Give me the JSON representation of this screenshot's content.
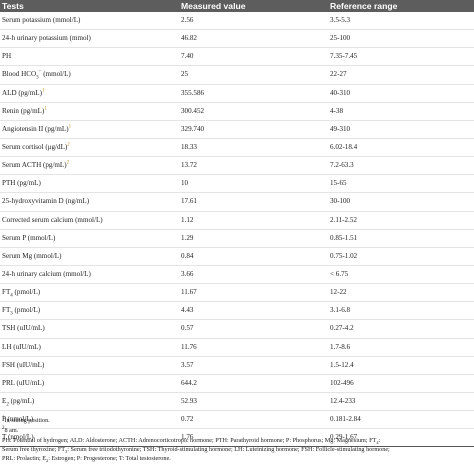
{
  "table": {
    "headers": [
      "Tests",
      "Measured value",
      "Reference range"
    ],
    "rows": [
      {
        "name": "Serum potassium (mmol/L)",
        "value": "2.56",
        "range": "3.5-5.3"
      },
      {
        "name": "24-h urinary potassium (mmol)",
        "value": "46.82",
        "range": "25-100"
      },
      {
        "name": "PH",
        "value": "7.40",
        "range": "7.35-7.45"
      },
      {
        "name": "Blood HCO",
        "name_sub": "3",
        "name_sup": "−",
        "name_tail": " (mmol/L)",
        "value": "25",
        "range": "22-27"
      },
      {
        "name": "ALD (pg/mL)",
        "mark": "1",
        "value": "355.586",
        "range": "40-310"
      },
      {
        "name": "Renin (pg/mL)",
        "mark": "1",
        "value": "300.452",
        "range": "4-38"
      },
      {
        "name": "Angiotensin II (pg/mL)",
        "mark": "1",
        "value": "329.740",
        "range": "49-310"
      },
      {
        "name": "Serum cortisol (μg/dL)",
        "mark": "2",
        "value": "18.33",
        "range": "6.02-18.4"
      },
      {
        "name": "Serum ACTH (pg/mL)",
        "mark": "2",
        "value": "13.72",
        "range": "7.2-63.3"
      },
      {
        "name": "PTH (pg/mL)",
        "value": "10",
        "range": "15-65"
      },
      {
        "name": "25-hydroxyvitamin D (ng/mL)",
        "value": "17.61",
        "range": "30-100"
      },
      {
        "name": "Corrected serum calcium (mmol/L)",
        "value": "1.12",
        "range": "2.11-2.52"
      },
      {
        "name": "Serum P (mmol/L)",
        "value": "1.29",
        "range": "0.85-1.51"
      },
      {
        "name": "Serum Mg (mmol/L)",
        "value": "0.84",
        "range": "0.75-1.02"
      },
      {
        "name": "24-h urinary calcium (mmol/L)",
        "value": "3.66",
        "range": "< 6.75"
      },
      {
        "name": "FT",
        "name_sub": "4",
        "name_tail": " (pmol/L)",
        "value": "11.67",
        "range": "12-22"
      },
      {
        "name": "FT",
        "name_sub": "3",
        "name_tail": " (pmol/L)",
        "value": "4.43",
        "range": "3.1-6.8"
      },
      {
        "name": "TSH (uIU/mL)",
        "value": "0.57",
        "range": "0.27-4.2"
      },
      {
        "name": "LH (uIU/mL)",
        "value": "11.76",
        "range": "1.7-8.6"
      },
      {
        "name": "FSH (uIU/mL)",
        "value": "3.57",
        "range": "1.5-12.4"
      },
      {
        "name": "PRL (uIU/mL)",
        "value": "644.2",
        "range": "102-496"
      },
      {
        "name": "E",
        "name_sub": "2",
        "name_tail": " (pg/mL)",
        "value": "52.93",
        "range": "12.4-233"
      },
      {
        "name": "P (nmol/L)",
        "value": "0.72",
        "range": "0.181-2.84"
      },
      {
        "name": "T (nmol/L)",
        "value": "1.76",
        "range": "0.29-1.67"
      }
    ]
  },
  "footnotes": {
    "fn1_mark": "1",
    "fn1_text": "In sitting position.",
    "fn2_mark": "2",
    "fn2_text": "8 am.",
    "abbr_line1": "PH: Potential of hydrogen; ALD: Aldosterone; ACTH: Adrenocorticotropic hormone; PTH: Parathyroid hormone; P: Phosphorus; Mg: Magnesium; FT",
    "abbr_line1_sub": "4",
    "abbr_line1_end": ":",
    "abbr_line2_a": "Serum free thyroxine; FT",
    "abbr_line2_sub": "3",
    "abbr_line2_b": ": Serum free triiodothyronine; TSH: Thyroid-stimulating hormone; LH: Luteinizing hormone; FSH: Follicle-stimulating hormone;",
    "abbr_line3_a": "PRL: Prolactin; E",
    "abbr_line3_sub": "2",
    "abbr_line3_b": ": Estrogen; P: Progesterone; T: Total testosterone."
  }
}
